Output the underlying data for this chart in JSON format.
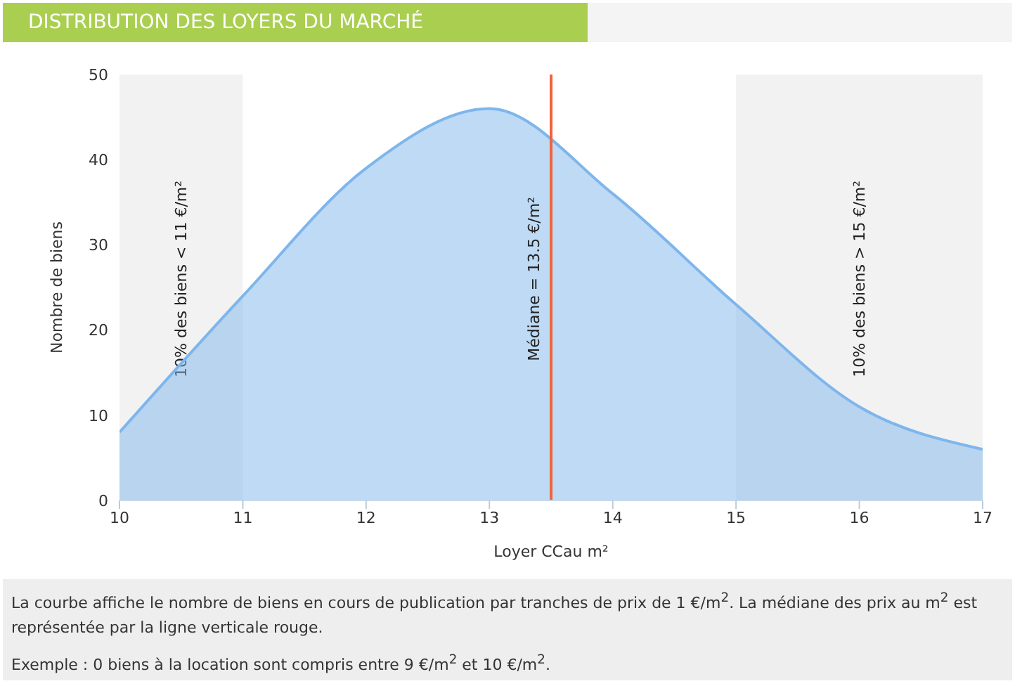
{
  "chart_data": {
    "type": "area",
    "title": "DISTRIBUTION DES LOYERS DU MARCHÉ",
    "xlabel": "Loyer CCau m²",
    "ylabel": "Nombre de biens",
    "x": [
      10,
      11,
      12,
      13,
      14,
      15,
      16,
      17
    ],
    "series": [
      {
        "color": "#7eb6ec",
        "values": [
          8,
          24,
          39,
          46,
          36,
          23,
          11,
          6
        ]
      }
    ],
    "xlim": [
      10,
      17
    ],
    "xticks": [
      10,
      11,
      12,
      13,
      14,
      15,
      16,
      17
    ],
    "ylim": [
      0,
      50
    ],
    "yticks": [
      0,
      10,
      20,
      30,
      40,
      50
    ],
    "grid": false,
    "legend": false,
    "marker": "none",
    "line_style": "solid",
    "ref_lines": [
      {
        "axis": "x",
        "value": 13.5,
        "label": "Médiane = 13.5 €/m²",
        "color": "#f0643c"
      }
    ],
    "bands": [
      {
        "axis": "x",
        "from": 10,
        "to": 11,
        "label": "10% des biens < 11 €/m²",
        "color": "#f2f2f2"
      },
      {
        "axis": "x",
        "from": 15,
        "to": 17,
        "label": "10% des biens > 15 €/m²",
        "color": "#f2f2f2"
      }
    ],
    "annotations": [
      "La courbe affiche le nombre de biens en cours de publication par tranches de prix de 1 €/m$^{2}$. La médiane des prix au m$^{2}$ est représentée par la ligne verticale rouge.",
      "Exemple : 0 biens à la location sont compris entre 9 €/m$^{2}$ et 10 €/m$^{2}$."
    ]
  }
}
